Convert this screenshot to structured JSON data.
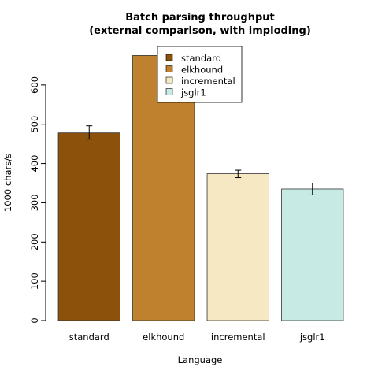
{
  "chart_data": {
    "type": "bar",
    "title_line1": "Batch parsing throughput",
    "title_line2": "(external comparison, with imploding)",
    "xlabel": "Language",
    "ylabel": "1000 chars/s",
    "ylim": [
      0,
      700
    ],
    "yticks": [
      0,
      100,
      200,
      300,
      400,
      500,
      600
    ],
    "ytick_labels": [
      "0",
      "100",
      "200",
      "300",
      "400",
      "500",
      "600"
    ],
    "grid": false,
    "legend_position": "top-center",
    "categories": [
      "standard",
      "elkhound",
      "incremental",
      "jsglr1"
    ],
    "values": [
      478,
      675,
      374,
      335
    ],
    "errors": [
      [
        462,
        496
      ],
      [
        663,
        687
      ],
      [
        364,
        383
      ],
      [
        320,
        350
      ]
    ],
    "colors": [
      "#8c510a",
      "#bf812d",
      "#f6e8c3",
      "#c7eae5"
    ],
    "legend": [
      "standard",
      "elkhound",
      "incremental",
      "jsglr1"
    ]
  }
}
